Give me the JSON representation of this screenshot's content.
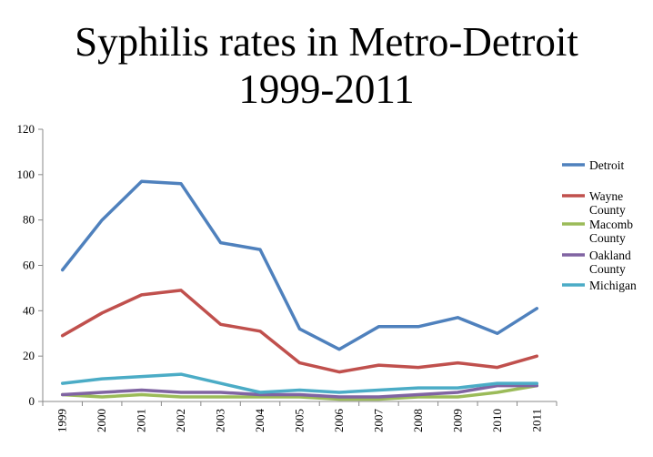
{
  "title_line1": "Syphilis rates in Metro-Detroit",
  "title_line2": "1999-2011",
  "chart_data": {
    "type": "line",
    "title": "Syphilis rates in Metro-Detroit 1999-2011",
    "x": [
      "1999",
      "2000",
      "2001",
      "2002",
      "2003",
      "2004",
      "2005",
      "2006",
      "2007",
      "2008",
      "2009",
      "2010",
      "2011"
    ],
    "ylim": [
      0,
      120
    ],
    "yticks": [
      0,
      20,
      40,
      60,
      80,
      100,
      120
    ],
    "grid": false,
    "legend": "right",
    "series": [
      {
        "name": "Detroit",
        "legend_lines": [
          "Detroit"
        ],
        "color": "#4f81bd",
        "values": [
          58,
          80,
          97,
          96,
          70,
          67,
          32,
          23,
          33,
          33,
          37,
          30,
          41
        ]
      },
      {
        "name": "Wayne County",
        "legend_lines": [
          "Wayne",
          "County"
        ],
        "color": "#c0504d",
        "values": [
          29,
          39,
          47,
          49,
          34,
          31,
          17,
          13,
          16,
          15,
          17,
          15,
          20
        ]
      },
      {
        "name": "Macomb County",
        "legend_lines": [
          "Macomb",
          "County"
        ],
        "color": "#9bbb59",
        "values": [
          3,
          2,
          3,
          2,
          2,
          2,
          2,
          1,
          1,
          2,
          2,
          4,
          7
        ]
      },
      {
        "name": "Oakland County",
        "legend_lines": [
          "Oakland",
          "County"
        ],
        "color": "#8064a2",
        "values": [
          3,
          4,
          5,
          4,
          4,
          3,
          3,
          2,
          2,
          3,
          4,
          7,
          7
        ]
      },
      {
        "name": "Michigan",
        "legend_lines": [
          "Michigan"
        ],
        "color": "#4bacc6",
        "values": [
          8,
          10,
          11,
          12,
          8,
          4,
          5,
          4,
          5,
          6,
          6,
          8,
          8
        ]
      }
    ]
  }
}
